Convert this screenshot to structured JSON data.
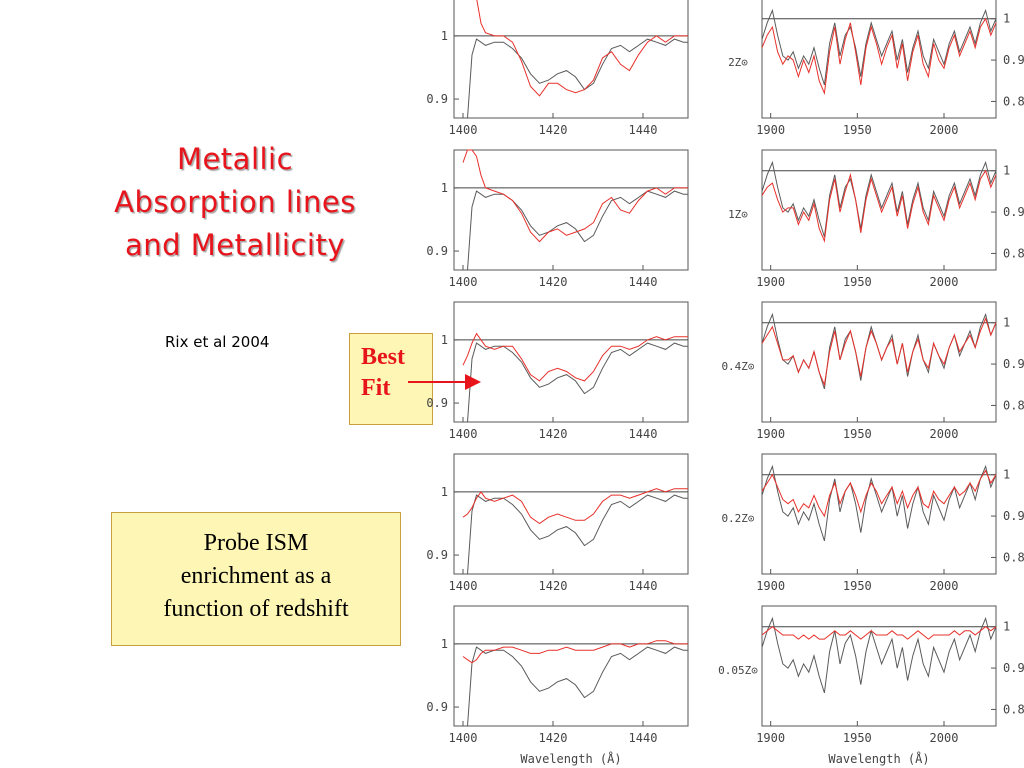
{
  "slide": {
    "title_lines": [
      "Metallic",
      "Absorption lines",
      "and Metallicity"
    ],
    "citation": "Rix et al 2004",
    "best_fit_lines": [
      "Best",
      "Fit"
    ],
    "probe_lines": [
      "Probe ISM",
      "enrichment as a",
      "function of redshift"
    ]
  },
  "colors": {
    "title": "#e8141c",
    "model": "#e8302a",
    "observed": "#5a5a5a",
    "box_fill": "#fef6b4"
  },
  "chart_data": [
    {
      "type": "line",
      "description": "Left column: spectra near 1400-1450 Å",
      "x_ticks": [
        1400,
        1420,
        1440
      ],
      "y_ticks": [
        {
          "value": 1,
          "label": "1"
        },
        {
          "value": 0.9,
          "label": "0.9"
        }
      ],
      "xlim": [
        1398,
        1450
      ],
      "ylim": [
        0.87,
        1.06
      ],
      "xlabel": "Wavelength (Å)",
      "rows": [
        "2Z⊙",
        "1Z⊙",
        "0.4Z⊙",
        "0.2Z⊙",
        "0.05Z⊙"
      ],
      "best_fit_row": "0.4Z⊙",
      "series": [
        {
          "name": "observed",
          "x": [
            1401,
            1402,
            1403,
            1404,
            1405,
            1407,
            1409,
            1411,
            1413,
            1415,
            1417,
            1419,
            1421,
            1423,
            1425,
            1427,
            1429,
            1431,
            1433,
            1435,
            1437,
            1439,
            1441,
            1443,
            1445,
            1447,
            1449,
            1450
          ],
          "y": [
            0.82,
            0.97,
            0.995,
            0.99,
            0.985,
            0.99,
            0.99,
            0.98,
            0.965,
            0.94,
            0.925,
            0.93,
            0.94,
            0.945,
            0.935,
            0.915,
            0.925,
            0.955,
            0.98,
            0.985,
            0.975,
            0.985,
            0.995,
            0.99,
            0.985,
            0.995,
            0.99,
            0.99
          ]
        }
      ],
      "models": [
        {
          "row": "2Z⊙",
          "x": [
            1400,
            1401,
            1402,
            1403,
            1404,
            1405,
            1407,
            1409,
            1411,
            1413,
            1415,
            1417,
            1419,
            1421,
            1423,
            1425,
            1427,
            1429,
            1431,
            1433,
            1435,
            1437,
            1439,
            1441,
            1443,
            1445,
            1447,
            1449,
            1450
          ],
          "y": [
            1.06,
            1.06,
            1.06,
            1.06,
            1.02,
            1.005,
            1.0,
            1.0,
            0.99,
            0.96,
            0.92,
            0.905,
            0.925,
            0.925,
            0.915,
            0.91,
            0.915,
            0.93,
            0.965,
            0.975,
            0.955,
            0.945,
            0.97,
            0.99,
            1.0,
            0.99,
            1.0,
            1.0,
            1.0
          ]
        },
        {
          "row": "1Z⊙",
          "x": [
            1400,
            1401,
            1402,
            1403,
            1404,
            1405,
            1407,
            1409,
            1411,
            1413,
            1415,
            1417,
            1419,
            1421,
            1423,
            1425,
            1427,
            1429,
            1431,
            1433,
            1435,
            1437,
            1439,
            1441,
            1443,
            1445,
            1447,
            1449,
            1450
          ],
          "y": [
            1.04,
            1.06,
            1.06,
            1.05,
            1.02,
            1.0,
            0.995,
            0.99,
            0.98,
            0.96,
            0.93,
            0.915,
            0.93,
            0.935,
            0.925,
            0.93,
            0.935,
            0.945,
            0.975,
            0.985,
            0.965,
            0.96,
            0.98,
            0.995,
            1.0,
            0.99,
            1.0,
            1.0,
            1.0
          ]
        },
        {
          "row": "0.4Z⊙",
          "x": [
            1400,
            1401,
            1402,
            1403,
            1404,
            1405,
            1407,
            1409,
            1411,
            1413,
            1415,
            1417,
            1419,
            1421,
            1423,
            1425,
            1427,
            1429,
            1431,
            1433,
            1435,
            1437,
            1439,
            1441,
            1443,
            1445,
            1447,
            1449,
            1450
          ],
          "y": [
            0.96,
            0.975,
            0.995,
            1.01,
            1.0,
            0.99,
            0.985,
            0.99,
            0.99,
            0.97,
            0.945,
            0.935,
            0.95,
            0.955,
            0.95,
            0.94,
            0.935,
            0.95,
            0.975,
            0.99,
            0.99,
            0.985,
            0.99,
            1.0,
            1.005,
            1.0,
            1.005,
            1.005,
            1.005
          ]
        },
        {
          "row": "0.2Z⊙",
          "x": [
            1400,
            1401,
            1402,
            1403,
            1404,
            1405,
            1407,
            1409,
            1411,
            1413,
            1415,
            1417,
            1419,
            1421,
            1423,
            1425,
            1427,
            1429,
            1431,
            1433,
            1435,
            1437,
            1439,
            1441,
            1443,
            1445,
            1447,
            1449,
            1450
          ],
          "y": [
            0.96,
            0.965,
            0.975,
            0.99,
            1.0,
            0.99,
            0.985,
            0.99,
            0.995,
            0.985,
            0.96,
            0.95,
            0.96,
            0.965,
            0.96,
            0.955,
            0.955,
            0.965,
            0.985,
            0.995,
            0.995,
            0.99,
            0.995,
            1.0,
            1.005,
            1.0,
            1.005,
            1.005,
            1.005
          ]
        },
        {
          "row": "0.05Z⊙",
          "x": [
            1400,
            1401,
            1402,
            1403,
            1404,
            1405,
            1407,
            1409,
            1411,
            1413,
            1415,
            1417,
            1419,
            1421,
            1423,
            1425,
            1427,
            1429,
            1431,
            1433,
            1435,
            1437,
            1439,
            1441,
            1443,
            1445,
            1447,
            1449,
            1450
          ],
          "y": [
            0.98,
            0.975,
            0.97,
            0.975,
            0.985,
            0.99,
            0.99,
            0.995,
            0.995,
            0.99,
            0.985,
            0.985,
            0.99,
            0.99,
            0.995,
            0.99,
            0.99,
            0.99,
            0.995,
            1.0,
            1.0,
            0.995,
            1.0,
            1.0,
            1.005,
            1.005,
            1.0,
            1.0,
            1.0
          ]
        }
      ]
    },
    {
      "type": "line",
      "description": "Right column: spectra near 1900-2030 Å",
      "x_ticks": [
        1900,
        1950,
        2000
      ],
      "y_ticks": [
        {
          "value": 1,
          "label": "1"
        },
        {
          "value": 0.9,
          "label": "0.9"
        },
        {
          "value": 0.8,
          "label": "0.8"
        }
      ],
      "xlim": [
        1895,
        2030
      ],
      "ylim": [
        0.76,
        1.05
      ],
      "xlabel": "Wavelength (Å)",
      "rows": [
        "2Z⊙",
        "1Z⊙",
        "0.4Z⊙",
        "0.2Z⊙",
        "0.05Z⊙"
      ],
      "series": [
        {
          "name": "observed",
          "x": [
            1895,
            1898,
            1901,
            1904,
            1907,
            1910,
            1913,
            1916,
            1919,
            1922,
            1925,
            1928,
            1931,
            1934,
            1937,
            1940,
            1943,
            1946,
            1949,
            1952,
            1955,
            1958,
            1961,
            1964,
            1967,
            1970,
            1973,
            1976,
            1979,
            1982,
            1985,
            1988,
            1991,
            1994,
            1997,
            2000,
            2003,
            2006,
            2009,
            2012,
            2015,
            2018,
            2021,
            2024,
            2027,
            2030
          ],
          "y": [
            0.95,
            0.99,
            1.02,
            0.96,
            0.91,
            0.9,
            0.92,
            0.88,
            0.91,
            0.89,
            0.93,
            0.88,
            0.84,
            0.94,
            0.99,
            0.91,
            0.96,
            0.98,
            0.93,
            0.86,
            0.94,
            0.99,
            0.95,
            0.91,
            0.94,
            0.97,
            0.9,
            0.95,
            0.87,
            0.93,
            0.97,
            0.91,
            0.88,
            0.95,
            0.92,
            0.89,
            0.94,
            0.97,
            0.92,
            0.95,
            0.98,
            0.94,
            0.99,
            1.02,
            0.97,
            1.0
          ]
        }
      ],
      "models": [
        {
          "row": "2Z⊙",
          "x": [
            1895,
            1898,
            1901,
            1904,
            1907,
            1910,
            1913,
            1916,
            1919,
            1922,
            1925,
            1928,
            1931,
            1934,
            1937,
            1940,
            1943,
            1946,
            1949,
            1952,
            1955,
            1958,
            1961,
            1964,
            1967,
            1970,
            1973,
            1976,
            1979,
            1982,
            1985,
            1988,
            1991,
            1994,
            1997,
            2000,
            2003,
            2006,
            2009,
            2012,
            2015,
            2018,
            2021,
            2024,
            2027,
            2030
          ],
          "y": [
            0.93,
            0.96,
            0.98,
            0.92,
            0.89,
            0.91,
            0.9,
            0.86,
            0.9,
            0.87,
            0.91,
            0.85,
            0.82,
            0.92,
            0.98,
            0.89,
            0.95,
            0.99,
            0.92,
            0.84,
            0.93,
            0.98,
            0.94,
            0.89,
            0.93,
            0.96,
            0.88,
            0.94,
            0.85,
            0.92,
            0.96,
            0.89,
            0.86,
            0.94,
            0.9,
            0.88,
            0.93,
            0.96,
            0.91,
            0.94,
            0.97,
            0.93,
            0.98,
            1.0,
            0.96,
            0.99
          ]
        },
        {
          "row": "1Z⊙",
          "x": [
            1895,
            1898,
            1901,
            1904,
            1907,
            1910,
            1913,
            1916,
            1919,
            1922,
            1925,
            1928,
            1931,
            1934,
            1937,
            1940,
            1943,
            1946,
            1949,
            1952,
            1955,
            1958,
            1961,
            1964,
            1967,
            1970,
            1973,
            1976,
            1979,
            1982,
            1985,
            1988,
            1991,
            1994,
            1997,
            2000,
            2003,
            2006,
            2009,
            2012,
            2015,
            2018,
            2021,
            2024,
            2027,
            2030
          ],
          "y": [
            0.94,
            0.96,
            0.97,
            0.93,
            0.9,
            0.91,
            0.91,
            0.87,
            0.9,
            0.88,
            0.92,
            0.86,
            0.83,
            0.93,
            0.98,
            0.9,
            0.95,
            0.99,
            0.93,
            0.85,
            0.93,
            0.98,
            0.94,
            0.9,
            0.93,
            0.96,
            0.89,
            0.94,
            0.86,
            0.92,
            0.96,
            0.9,
            0.87,
            0.94,
            0.91,
            0.88,
            0.93,
            0.96,
            0.91,
            0.94,
            0.97,
            0.93,
            0.98,
            1.0,
            0.96,
            0.99
          ]
        },
        {
          "row": "0.4Z⊙",
          "x": [
            1895,
            1898,
            1901,
            1904,
            1907,
            1910,
            1913,
            1916,
            1919,
            1922,
            1925,
            1928,
            1931,
            1934,
            1937,
            1940,
            1943,
            1946,
            1949,
            1952,
            1955,
            1958,
            1961,
            1964,
            1967,
            1970,
            1973,
            1976,
            1979,
            1982,
            1985,
            1988,
            1991,
            1994,
            1997,
            2000,
            2003,
            2006,
            2009,
            2012,
            2015,
            2018,
            2021,
            2024,
            2027,
            2030
          ],
          "y": [
            0.95,
            0.97,
            0.99,
            0.95,
            0.91,
            0.91,
            0.92,
            0.88,
            0.91,
            0.89,
            0.93,
            0.88,
            0.85,
            0.93,
            0.98,
            0.91,
            0.95,
            0.98,
            0.93,
            0.87,
            0.94,
            0.98,
            0.95,
            0.91,
            0.94,
            0.96,
            0.9,
            0.95,
            0.88,
            0.93,
            0.96,
            0.91,
            0.89,
            0.95,
            0.92,
            0.9,
            0.94,
            0.97,
            0.93,
            0.95,
            0.97,
            0.94,
            0.98,
            1.01,
            0.97,
            1.0
          ]
        },
        {
          "row": "0.2Z⊙",
          "x": [
            1895,
            1898,
            1901,
            1904,
            1907,
            1910,
            1913,
            1916,
            1919,
            1922,
            1925,
            1928,
            1931,
            1934,
            1937,
            1940,
            1943,
            1946,
            1949,
            1952,
            1955,
            1958,
            1961,
            1964,
            1967,
            1970,
            1973,
            1976,
            1979,
            1982,
            1985,
            1988,
            1991,
            1994,
            1997,
            2000,
            2003,
            2006,
            2009,
            2012,
            2015,
            2018,
            2021,
            2024,
            2027,
            2030
          ],
          "y": [
            0.96,
            0.98,
            1.0,
            0.97,
            0.94,
            0.93,
            0.94,
            0.91,
            0.93,
            0.92,
            0.95,
            0.92,
            0.9,
            0.95,
            0.98,
            0.93,
            0.96,
            0.98,
            0.95,
            0.91,
            0.95,
            0.98,
            0.96,
            0.93,
            0.95,
            0.97,
            0.93,
            0.96,
            0.92,
            0.95,
            0.97,
            0.93,
            0.92,
            0.96,
            0.94,
            0.93,
            0.95,
            0.97,
            0.95,
            0.96,
            0.98,
            0.96,
            0.99,
            1.01,
            0.98,
            1.0
          ]
        },
        {
          "row": "0.05Z⊙",
          "x": [
            1895,
            1898,
            1901,
            1904,
            1907,
            1910,
            1913,
            1916,
            1919,
            1922,
            1925,
            1928,
            1931,
            1934,
            1937,
            1940,
            1943,
            1946,
            1949,
            1952,
            1955,
            1958,
            1961,
            1964,
            1967,
            1970,
            1973,
            1976,
            1979,
            1982,
            1985,
            1988,
            1991,
            1994,
            1997,
            2000,
            2003,
            2006,
            2009,
            2012,
            2015,
            2018,
            2021,
            2024,
            2027,
            2030
          ],
          "y": [
            0.98,
            0.99,
            1.0,
            0.99,
            0.98,
            0.98,
            0.98,
            0.97,
            0.98,
            0.97,
            0.98,
            0.97,
            0.97,
            0.98,
            0.99,
            0.98,
            0.98,
            0.99,
            0.98,
            0.97,
            0.98,
            0.99,
            0.98,
            0.98,
            0.98,
            0.99,
            0.98,
            0.98,
            0.97,
            0.98,
            0.99,
            0.98,
            0.97,
            0.98,
            0.98,
            0.98,
            0.98,
            0.99,
            0.98,
            0.99,
            0.99,
            0.98,
            0.99,
            1.0,
            0.99,
            1.0
          ]
        }
      ]
    }
  ]
}
